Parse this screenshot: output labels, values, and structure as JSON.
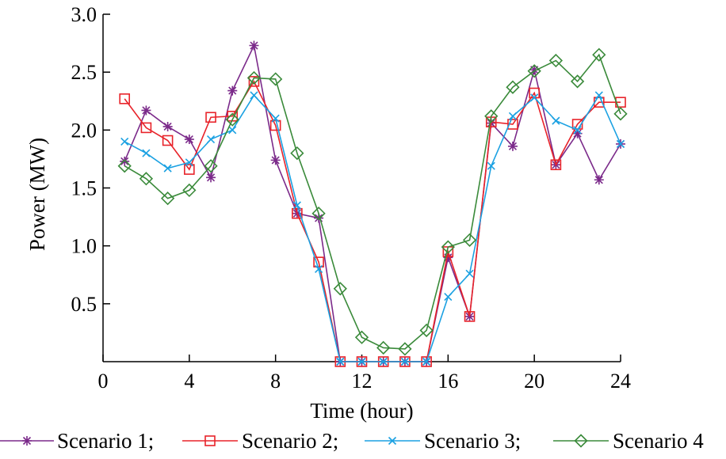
{
  "chart_data": {
    "type": "line",
    "xlabel": "Time (hour)",
    "ylabel": "Power (MW)",
    "xlim": [
      0,
      24
    ],
    "ylim": [
      0,
      3.0
    ],
    "x_ticks": [
      "0",
      "4",
      "8",
      "12",
      "16",
      "20",
      "24"
    ],
    "y_ticks": [
      "0.5",
      "1.0",
      "1.5",
      "2.0",
      "2.5",
      "3.0"
    ],
    "grid": false,
    "legend_placement": "bottom",
    "x": [
      1,
      2,
      3,
      4,
      5,
      6,
      7,
      8,
      9,
      10,
      11,
      12,
      13,
      14,
      15,
      16,
      17,
      18,
      19,
      20,
      21,
      22,
      23,
      24
    ],
    "series": [
      {
        "name": "Scenario 1",
        "legend_label": "Scenario 1;",
        "color": "#7B2A8A",
        "marker": "asterisk",
        "values": [
          1.73,
          2.17,
          2.03,
          1.92,
          1.59,
          2.34,
          2.73,
          1.74,
          1.28,
          1.24,
          0.0,
          0.0,
          0.0,
          0.0,
          0.0,
          0.9,
          0.39,
          2.06,
          1.86,
          2.52,
          1.7,
          1.97,
          1.57,
          1.88
        ]
      },
      {
        "name": "Scenario 2",
        "legend_label": "Scenario 2;",
        "color": "#E8232A",
        "marker": "square",
        "values": [
          2.27,
          2.02,
          1.91,
          1.66,
          2.11,
          2.12,
          2.42,
          2.04,
          1.28,
          0.86,
          0.0,
          0.0,
          0.0,
          0.0,
          0.0,
          0.95,
          0.39,
          2.07,
          2.05,
          2.32,
          1.7,
          2.05,
          2.24,
          2.24
        ]
      },
      {
        "name": "Scenario 3",
        "legend_label": "Scenario 3;",
        "color": "#1BA1E2",
        "marker": "x",
        "values": [
          1.9,
          1.8,
          1.67,
          1.72,
          1.92,
          2.0,
          2.3,
          2.1,
          1.35,
          0.8,
          0.0,
          0.0,
          0.0,
          0.0,
          0.0,
          0.56,
          0.76,
          1.69,
          2.12,
          2.28,
          2.08,
          2.0,
          2.3,
          1.88
        ]
      },
      {
        "name": "Scenario 4",
        "legend_label": "Scenario 4",
        "color": "#3A8A3A",
        "marker": "diamond",
        "values": [
          1.69,
          1.58,
          1.41,
          1.48,
          1.69,
          2.09,
          2.45,
          2.44,
          1.8,
          1.28,
          0.63,
          0.21,
          0.12,
          0.11,
          0.27,
          0.99,
          1.05,
          2.12,
          2.37,
          2.51,
          2.6,
          2.42,
          2.65,
          2.14
        ]
      }
    ]
  }
}
